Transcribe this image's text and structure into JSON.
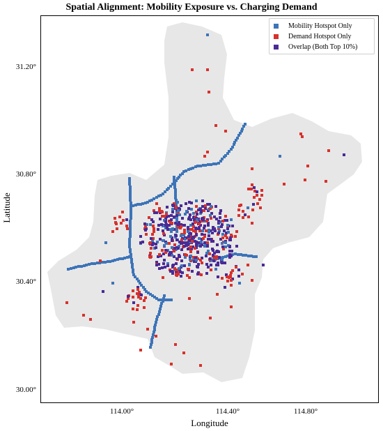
{
  "title": "Spatial Alignment: Mobility Exposure vs. Charging Demand",
  "axes": {
    "xlabel": "Longitude",
    "ylabel": "Latitude",
    "xticks": [
      "114.00°",
      "114.40°",
      "114.80°"
    ],
    "yticks": [
      "31.20°",
      "30.80°",
      "30.40°",
      "30.00°"
    ]
  },
  "legend": {
    "position": "top-right",
    "items": [
      {
        "label": "Mobility Hotspot Only",
        "color": "#3d74b8"
      },
      {
        "label": "Demand Hotspot Only",
        "color": "#d8312c"
      },
      {
        "label": "Overlap (Both Top 10%)",
        "color": "#4a2a96"
      }
    ]
  },
  "map": {
    "background_color": "#e7e7e7",
    "grid": "off"
  }
}
